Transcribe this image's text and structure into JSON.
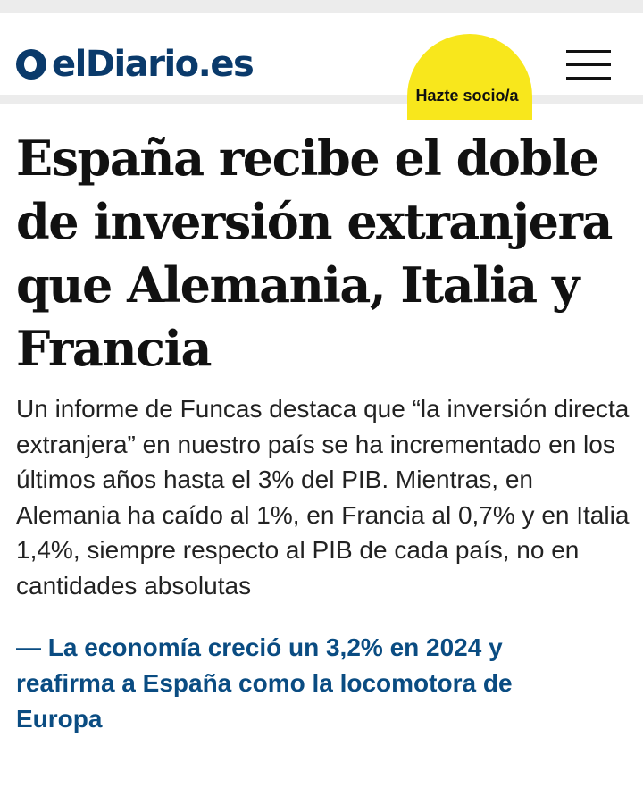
{
  "header": {
    "logo_text": "elDiario.es",
    "logo_icon": "eldiario-logo-icon",
    "subscribe_label": "Hazte socio/a",
    "menu_icon": "hamburger-menu-icon"
  },
  "article": {
    "headline": "España recibe el doble de inversión extranjera que Alemania, Italia y Francia",
    "standfirst": "Un informe de Funcas destaca que “la inversión directa extranjera” en nuestro país se ha incrementado en los últimos años hasta el 3% del PIB. Mientras, en Alemania ha caído al 1%, en Francia al 0,7% y en Italia 1,4%, siempre respecto al PIB de cada país, no en cantidades absolutas",
    "related_link": "— La economía creció un 3,2% en 2024 y reafirma a España como la locomotora de Europa"
  },
  "colors": {
    "brand": "#0a3a6b",
    "subscribe_bg": "#f8e71c",
    "link": "#0a4c82"
  }
}
